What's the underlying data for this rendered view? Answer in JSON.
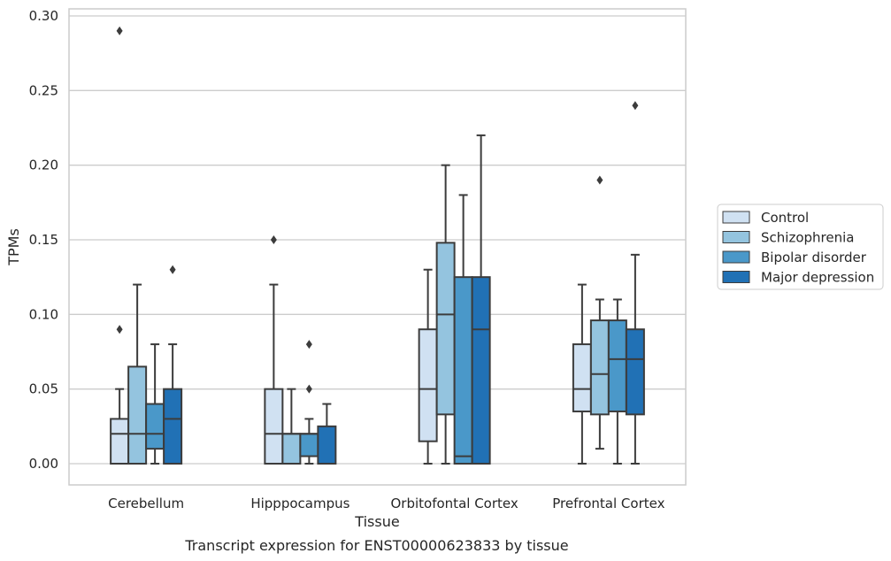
{
  "chart_data": {
    "type": "box",
    "caption": "Transcript expression for ENST00000623833 by tissue",
    "xlabel": "Tissue",
    "ylabel": "TPMs",
    "ylim": [
      -0.014,
      0.303
    ],
    "yticks": [
      0.0,
      0.05,
      0.1,
      0.15,
      0.2,
      0.25,
      0.3
    ],
    "ytick_labels": [
      "0.00",
      "0.05",
      "0.10",
      "0.15",
      "0.20",
      "0.25",
      "0.30"
    ],
    "grid": "horizontal",
    "legend_position": "right",
    "categories": [
      "Cerebellum",
      "Hipppocampus",
      "Orbitofontal Cortex",
      "Prefrontal Cortex"
    ],
    "series": [
      {
        "name": "Control",
        "color": "#d0e1f2",
        "boxes": [
          {
            "whisker_low": 0.0,
            "q1": 0.0,
            "median": 0.02,
            "q3": 0.03,
            "whisker_high": 0.05,
            "outliers": [
              0.29,
              0.09
            ]
          },
          {
            "whisker_low": 0.0,
            "q1": 0.0,
            "median": 0.02,
            "q3": 0.05,
            "whisker_high": 0.12,
            "outliers": [
              0.15
            ]
          },
          {
            "whisker_low": 0.0,
            "q1": 0.015,
            "median": 0.05,
            "q3": 0.09,
            "whisker_high": 0.13,
            "outliers": []
          },
          {
            "whisker_low": 0.0,
            "q1": 0.035,
            "median": 0.05,
            "q3": 0.08,
            "whisker_high": 0.12,
            "outliers": []
          }
        ]
      },
      {
        "name": "Schizophrenia",
        "color": "#94c4df",
        "boxes": [
          {
            "whisker_low": 0.0,
            "q1": 0.0,
            "median": 0.02,
            "q3": 0.065,
            "whisker_high": 0.12,
            "outliers": []
          },
          {
            "whisker_low": 0.0,
            "q1": 0.0,
            "median": 0.02,
            "q3": 0.02,
            "whisker_high": 0.05,
            "outliers": []
          },
          {
            "whisker_low": 0.0,
            "q1": 0.033,
            "median": 0.1,
            "q3": 0.148,
            "whisker_high": 0.2,
            "outliers": []
          },
          {
            "whisker_low": 0.01,
            "q1": 0.033,
            "median": 0.06,
            "q3": 0.096,
            "whisker_high": 0.11,
            "outliers": [
              0.19
            ]
          }
        ]
      },
      {
        "name": "Bipolar disorder",
        "color": "#4a98c9",
        "boxes": [
          {
            "whisker_low": 0.0,
            "q1": 0.01,
            "median": 0.02,
            "q3": 0.04,
            "whisker_high": 0.08,
            "outliers": []
          },
          {
            "whisker_low": 0.0,
            "q1": 0.005,
            "median": 0.02,
            "q3": 0.02,
            "whisker_high": 0.03,
            "outliers": [
              0.08,
              0.05
            ]
          },
          {
            "whisker_low": 0.0,
            "q1": 0.0,
            "median": 0.005,
            "q3": 0.125,
            "whisker_high": 0.18,
            "outliers": []
          },
          {
            "whisker_low": 0.0,
            "q1": 0.035,
            "median": 0.07,
            "q3": 0.096,
            "whisker_high": 0.11,
            "outliers": []
          }
        ]
      },
      {
        "name": "Major depression",
        "color": "#2171b5",
        "boxes": [
          {
            "whisker_low": 0.0,
            "q1": 0.0,
            "median": 0.03,
            "q3": 0.05,
            "whisker_high": 0.08,
            "outliers": [
              0.13
            ]
          },
          {
            "whisker_low": 0.0,
            "q1": 0.0,
            "median": 0.0,
            "q3": 0.025,
            "whisker_high": 0.04,
            "outliers": []
          },
          {
            "whisker_low": 0.0,
            "q1": 0.0,
            "median": 0.09,
            "q3": 0.125,
            "whisker_high": 0.22,
            "outliers": []
          },
          {
            "whisker_low": 0.0,
            "q1": 0.033,
            "median": 0.07,
            "q3": 0.09,
            "whisker_high": 0.14,
            "outliers": [
              0.24
            ]
          }
        ]
      }
    ]
  }
}
